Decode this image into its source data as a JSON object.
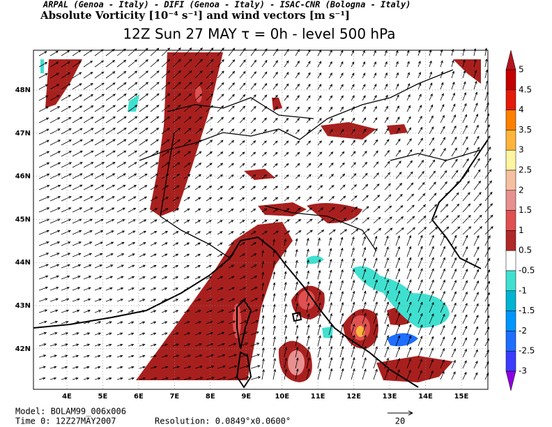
{
  "header": {
    "institutions": "ARPAL (Genoa - Italy)  -  DIFI (Genoa - Italy)  -  ISAC-CNR (Bologna - Italy)",
    "title": "Absolute Vorticity [10⁻⁴ s⁻¹] and wind vectors [m s⁻¹]",
    "subtitle": "12Z Sun 27 MAY  τ = 0h  -  level 500 hPa"
  },
  "map": {
    "lon_labels": [
      "4E",
      "5E",
      "6E",
      "7E",
      "8E",
      "9E",
      "10E",
      "11E",
      "12E",
      "13E",
      "14E",
      "15E"
    ],
    "lat_labels": [
      "48N",
      "47N",
      "46N",
      "45N",
      "44N",
      "43N",
      "42N"
    ]
  },
  "colorbar": {
    "labels": [
      "5",
      "4.5",
      "4",
      "3.5",
      "3",
      "2.5",
      "2",
      "1.5",
      "1",
      "0.5",
      "-0.5",
      "-1",
      "-1.5",
      "-2",
      "-2.5",
      "-3"
    ],
    "colors": [
      "#b4141e",
      "#c40000",
      "#e41a0a",
      "#ff8000",
      "#ffb43c",
      "#fff5a0",
      "#f5c0a0",
      "#e89090",
      "#e05050",
      "#b02828",
      "#ffffff",
      "#40e0d0",
      "#00b4d2",
      "#0096ff",
      "#1e6eff",
      "#3c3cff",
      "#8c00e0"
    ]
  },
  "footer": {
    "model": "Model: BOLAM99_006x006",
    "time": "Time 0: 12Z27MAY2007",
    "resolution": "Resolution: 0.0849°x0.0600°",
    "vector_reference": "20"
  }
}
